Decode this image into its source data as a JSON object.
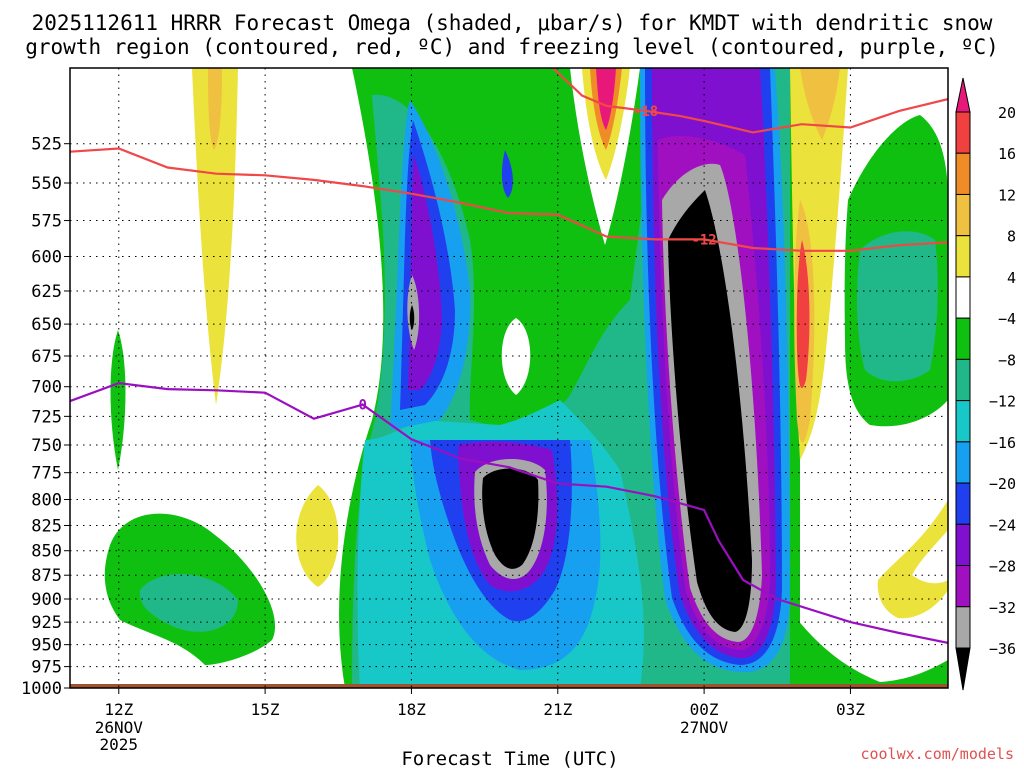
{
  "chart_data": {
    "type": "heatmap",
    "title": "2025112611 HRRR Forecast Omega (shaded, μbar/s) for KMDT with dendritic snow",
    "subtitle": "growth region (contoured, red, ºC) and freezing level (contoured, purple, ºC)",
    "xlabel": "Forecast Time (UTC)",
    "ylabel": "",
    "credit": "coolwx.com/models",
    "x_hours": [
      0,
      3,
      6,
      9,
      12,
      15
    ],
    "x_ticks": [
      {
        "hour": 0,
        "label": "12Z",
        "sub": [
          "26NOV",
          "2025"
        ]
      },
      {
        "hour": 3,
        "label": "15Z",
        "sub": []
      },
      {
        "hour": 6,
        "label": "18Z",
        "sub": []
      },
      {
        "hour": 9,
        "label": "21Z",
        "sub": []
      },
      {
        "hour": 12,
        "label": "00Z",
        "sub": [
          "27NOV"
        ]
      },
      {
        "hour": 15,
        "label": "03Z",
        "sub": []
      }
    ],
    "xlim_hours": [
      -1.0,
      17.0
    ],
    "ylim_mb": [
      1000,
      480
    ],
    "y_ticks": [
      1000,
      975,
      950,
      925,
      900,
      875,
      850,
      825,
      800,
      775,
      750,
      725,
      700,
      675,
      650,
      625,
      600,
      575,
      550,
      525
    ],
    "colorbar": {
      "levels": [
        20,
        16,
        12,
        8,
        4,
        -4,
        -8,
        -12,
        -16,
        -20,
        -24,
        -28,
        -32,
        -36
      ],
      "colors": [
        "#e8187a",
        "#f04040",
        "#f08c28",
        "#f0c040",
        "#ece23c",
        "#ffffff",
        "#10c010",
        "#20b888",
        "#18c8c8",
        "#18a0f0",
        "#2040f0",
        "#8010d0",
        "#a010c0",
        "#a8a8a8",
        "#000000"
      ]
    },
    "series": [
      {
        "name": "freezing level 0 ºC",
        "color": "#9a10c0",
        "label": "0",
        "label_hour": 5.0,
        "points": [
          [
            -1.0,
            712
          ],
          [
            0.0,
            697
          ],
          [
            1.0,
            702
          ],
          [
            2.0,
            703
          ],
          [
            3.0,
            705
          ],
          [
            4.0,
            727
          ],
          [
            5.0,
            715
          ],
          [
            6.0,
            745
          ],
          [
            7.0,
            762
          ],
          [
            8.0,
            770
          ],
          [
            9.0,
            785
          ],
          [
            10.0,
            788
          ],
          [
            11.0,
            797
          ],
          [
            12.0,
            810
          ],
          [
            12.3,
            840
          ],
          [
            12.8,
            880
          ],
          [
            13.5,
            900
          ],
          [
            15.0,
            925
          ],
          [
            16.0,
            937
          ],
          [
            17.0,
            948
          ]
        ]
      },
      {
        "name": "-12 ºC isotherm",
        "color": "#f04848",
        "label": "-12",
        "label_hour": 12.0,
        "points": [
          [
            -1.0,
            530
          ],
          [
            0.0,
            528
          ],
          [
            1.0,
            540
          ],
          [
            2.0,
            544
          ],
          [
            3.0,
            545
          ],
          [
            4.0,
            548
          ],
          [
            5.0,
            552
          ],
          [
            6.0,
            557
          ],
          [
            7.0,
            563
          ],
          [
            8.0,
            570
          ],
          [
            9.0,
            571
          ],
          [
            10.0,
            586
          ],
          [
            11.0,
            588
          ],
          [
            12.0,
            588
          ],
          [
            13.0,
            594
          ],
          [
            14.0,
            596
          ],
          [
            15.0,
            596
          ],
          [
            16.0,
            592
          ],
          [
            17.0,
            590
          ]
        ]
      },
      {
        "name": "-18 ºC isotherm",
        "color": "#f04848",
        "label": "-18",
        "label_hour": 10.8,
        "points": [
          [
            8.9,
            480
          ],
          [
            9.5,
            496
          ],
          [
            10.0,
            502
          ],
          [
            10.8,
            505
          ],
          [
            11.5,
            508
          ],
          [
            12.0,
            511
          ],
          [
            13.0,
            518
          ],
          [
            14.0,
            513
          ],
          [
            15.0,
            515
          ],
          [
            16.0,
            505
          ],
          [
            17.0,
            498
          ]
        ]
      }
    ]
  }
}
